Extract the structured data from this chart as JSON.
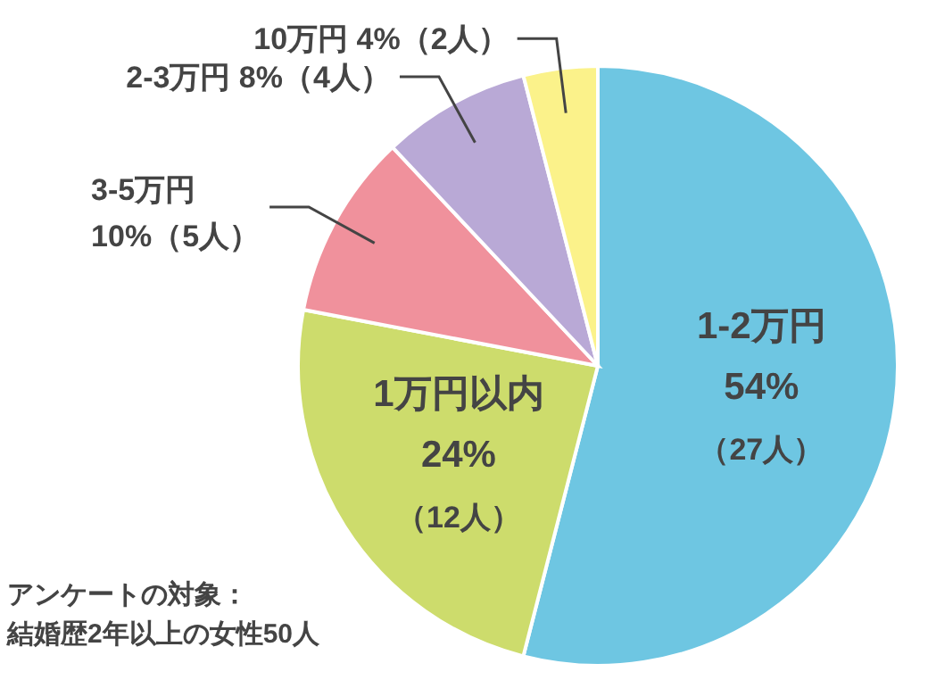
{
  "chart_data": {
    "type": "pie",
    "categories": [
      "1-2万円",
      "1万円以内",
      "3-5万円",
      "2-3万円",
      "10万円"
    ],
    "values": [
      54,
      24,
      10,
      8,
      4
    ],
    "value_labels": [
      "54%（27人）",
      "24%（12人）",
      "10%（5人）",
      "8%（4人）",
      "4%（2人）"
    ],
    "colors": [
      "#6ec6e2",
      "#cddc6c",
      "#f0919c",
      "#b9a9d6",
      "#fbf28a"
    ],
    "annotations": [
      "アンケートの対象：",
      "結婚歴2年以上の女性50人"
    ]
  }
}
